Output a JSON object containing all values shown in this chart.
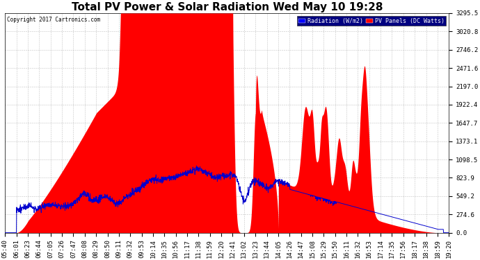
{
  "title": "Total PV Power & Solar Radiation Wed May 10 19:28",
  "copyright": "Copyright 2017 Cartronics.com",
  "background_color": "#ffffff",
  "plot_bg_color": "#ffffff",
  "grid_color": "#aaaaaa",
  "y_ticks": [
    0.0,
    274.6,
    549.2,
    823.9,
    1098.5,
    1373.1,
    1647.7,
    1922.4,
    2197.0,
    2471.6,
    2746.2,
    3020.8,
    3295.5
  ],
  "y_max": 3295.5,
  "legend_radiation_color": "#0000ff",
  "legend_pv_color": "#ff0000",
  "pv_color": "#ff0000",
  "radiation_color": "#0000cd",
  "title_fontsize": 11,
  "tick_fontsize": 6.5,
  "x_tick_labels": [
    "05:40",
    "06:01",
    "06:23",
    "06:44",
    "07:05",
    "07:26",
    "07:47",
    "08:08",
    "08:29",
    "08:50",
    "09:11",
    "09:32",
    "09:53",
    "10:14",
    "10:35",
    "10:56",
    "11:17",
    "11:38",
    "11:59",
    "12:20",
    "12:41",
    "13:02",
    "13:23",
    "13:44",
    "14:05",
    "14:26",
    "14:47",
    "15:08",
    "15:29",
    "15:50",
    "16:11",
    "16:32",
    "16:53",
    "17:14",
    "17:35",
    "17:56",
    "18:17",
    "18:38",
    "18:59",
    "19:20"
  ]
}
